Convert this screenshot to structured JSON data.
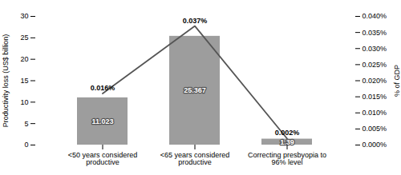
{
  "chart_data": {
    "type": "bar",
    "categories": [
      "<50 years considered\nproductive",
      "<65 years considered\nproductive",
      "Correcting presbyopia to\n96% level"
    ],
    "series": [
      {
        "type": "bar",
        "color": "#9d9d9d",
        "values": [
          11.023,
          25.367,
          1.39
        ],
        "data_labels": true
      },
      {
        "type": "line",
        "axis": "y2",
        "color": "#555555",
        "values": [
          0.016,
          0.037,
          0.002
        ],
        "value_labels": [
          "0.016%",
          "0.037%",
          "0.002%"
        ],
        "data_labels": true
      }
    ],
    "ylabel": "Productivity loss (US$ billion)",
    "y2label": "% of GDP",
    "ylim": [
      0,
      30
    ],
    "yticks": [
      0,
      5,
      10,
      15,
      20,
      25,
      30
    ],
    "y2lim": [
      0,
      0.04
    ],
    "y2ticks": [
      {
        "value": 0,
        "label": "0.000%"
      },
      {
        "value": 0.005,
        "label": "0.005%"
      },
      {
        "value": 0.01,
        "label": "0.010%"
      },
      {
        "value": 0.015,
        "label": "0.015%"
      },
      {
        "value": 0.02,
        "label": "0.020%"
      },
      {
        "value": 0.025,
        "label": "0.025%"
      },
      {
        "value": 0.03,
        "label": "0.030%"
      },
      {
        "value": 0.035,
        "label": "0.035%"
      },
      {
        "value": 0.04,
        "label": "0.040%"
      }
    ],
    "grid": false
  }
}
